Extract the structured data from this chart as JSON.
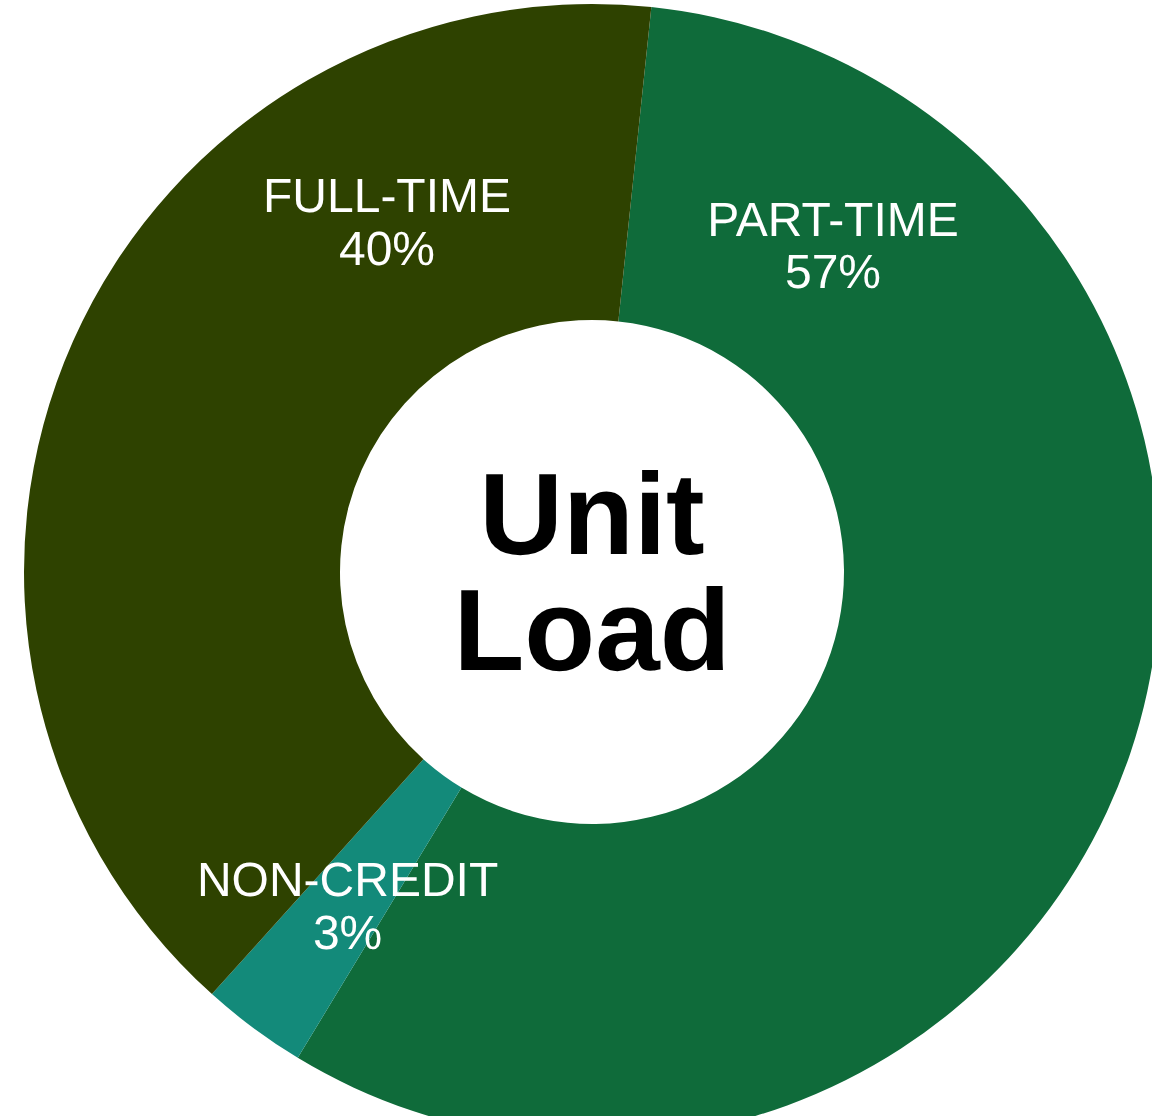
{
  "chart_data": {
    "type": "donut",
    "title": "Unit Load",
    "categories": [
      "PART-TIME",
      "NON-CREDIT",
      "FULL-TIME"
    ],
    "values": [
      57,
      3,
      40
    ],
    "colors": [
      "#0f6b3a",
      "#138a7a",
      "#2e4200"
    ],
    "value_labels": [
      "57%",
      "3%",
      "40%"
    ],
    "legend": false
  }
}
